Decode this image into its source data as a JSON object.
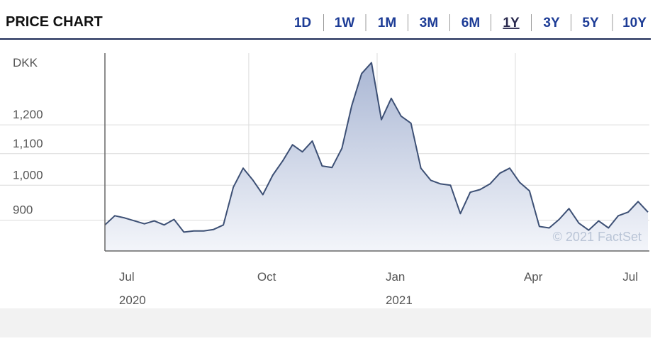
{
  "header": {
    "title": "PRICE CHART",
    "ranges": [
      "1D",
      "1W",
      "1M",
      "3M",
      "6M",
      "1Y",
      "3Y",
      "5Y",
      "10Y"
    ],
    "selected_range": "1Y"
  },
  "chart_data": {
    "type": "area",
    "ylabel": "DKK",
    "annotation": "© 2021 FactSet",
    "log_scale": true,
    "grid": true,
    "color": "#3d5075",
    "ylim": [
      820,
      1490
    ],
    "yticks": [
      900,
      {
        "value": 1000,
        "label": "1,000"
      },
      {
        "value": 1100,
        "label": "1,100"
      },
      {
        "value": 1200,
        "label": "1,200"
      }
    ],
    "categories": [
      null,
      [
        "Jul",
        "2020"
      ],
      null,
      null,
      null,
      null,
      null,
      null,
      null,
      null,
      null,
      null,
      null,
      null,
      null,
      [
        "Oct"
      ],
      null,
      null,
      null,
      null,
      null,
      null,
      null,
      null,
      null,
      null,
      null,
      null,
      [
        "Jan",
        "2021"
      ],
      null,
      null,
      null,
      null,
      null,
      null,
      null,
      null,
      null,
      null,
      null,
      null,
      null,
      [
        "Apr"
      ],
      null,
      null,
      null,
      null,
      null,
      null,
      null,
      null,
      null,
      null,
      null,
      null,
      [
        "Jul"
      ]
    ],
    "values": [
      887,
      912,
      906,
      898,
      890,
      898,
      887,
      902,
      868,
      871,
      871,
      875,
      887,
      994,
      1053,
      1015,
      972,
      1031,
      1076,
      1130,
      1106,
      1143,
      1060,
      1055,
      1118,
      1272,
      1401,
      1448,
      1219,
      1300,
      1232,
      1206,
      1053,
      1015,
      1004,
      1000,
      918,
      979,
      987,
      1004,
      1037,
      1053,
      1009,
      983,
      883,
      879,
      902,
      932,
      892,
      873,
      898,
      879,
      912,
      922,
      952,
      922
    ]
  }
}
